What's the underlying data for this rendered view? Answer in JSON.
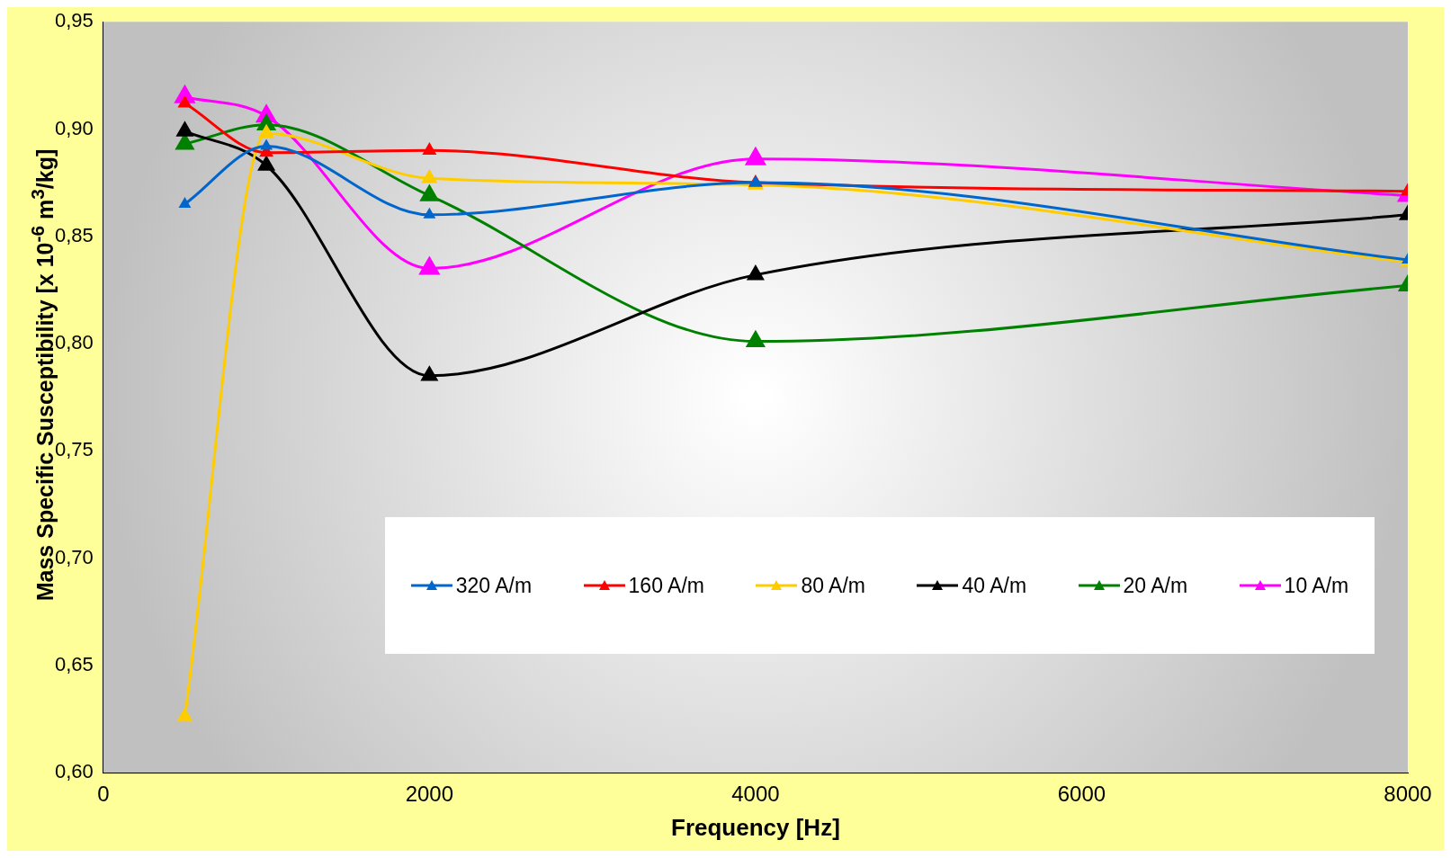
{
  "chart_data": {
    "type": "line",
    "xlabel": "Frequency [Hz]",
    "ylabel": "Mass Specific Susceptibility [x 10$^{-6}$ m$^{3}$/kg]",
    "x": [
      500,
      1000,
      2000,
      4000,
      8000
    ],
    "xlim": [
      0,
      8000
    ],
    "xticks": [
      0,
      2000,
      4000,
      6000,
      8000
    ],
    "ylim": [
      0.6,
      0.95
    ],
    "yticks": [
      {
        "value": 0.6,
        "label": "0,60"
      },
      {
        "value": 0.65,
        "label": "0,65"
      },
      {
        "value": 0.7,
        "label": "0,70"
      },
      {
        "value": 0.75,
        "label": "0,75"
      },
      {
        "value": 0.8,
        "label": "0,80"
      },
      {
        "value": 0.85,
        "label": "0,85"
      },
      {
        "value": 0.9,
        "label": "0,90"
      },
      {
        "value": 0.95,
        "label": "0,95"
      }
    ],
    "grid": false,
    "legend": "bottom right",
    "marker": "triangle",
    "line_style": "solid",
    "series": [
      {
        "name": "320 A/m",
        "color": "#0066cc",
        "values": [
          0.865,
          0.892,
          0.86,
          0.875,
          0.839
        ]
      },
      {
        "name": "160 A/m",
        "color": "#ff0000",
        "values": [
          0.912,
          0.889,
          0.89,
          0.875,
          0.871
        ]
      },
      {
        "name": "80 A/m",
        "color": "#ffcc00",
        "values": [
          0.626,
          0.898,
          0.877,
          0.874,
          0.838
        ]
      },
      {
        "name": "40 A/m",
        "color": "#000000",
        "values": [
          0.899,
          0.883,
          0.785,
          0.832,
          0.86
        ]
      },
      {
        "name": "20 A/m",
        "color": "#008000",
        "values": [
          0.893,
          0.902,
          0.869,
          0.801,
          0.827
        ]
      },
      {
        "name": "10 A/m",
        "color": "#ff00ff",
        "values": [
          0.915,
          0.906,
          0.835,
          0.886,
          0.869
        ]
      }
    ]
  }
}
